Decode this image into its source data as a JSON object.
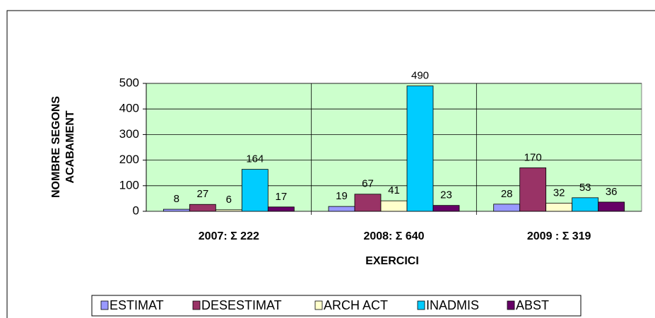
{
  "chart_data": {
    "type": "bar",
    "categories": [
      "2007: Σ 222",
      "2008: Σ 640",
      "2009 : Σ 319"
    ],
    "series": [
      {
        "name": "ESTIMAT",
        "color": "#9999ff",
        "values": [
          8,
          19,
          28
        ]
      },
      {
        "name": "DESESTIMAT",
        "color": "#993366",
        "values": [
          27,
          67,
          170
        ]
      },
      {
        "name": "ARCH ACT",
        "color": "#ffffcc",
        "values": [
          6,
          41,
          32
        ]
      },
      {
        "name": "INADMIS",
        "color": "#00ccff",
        "values": [
          164,
          490,
          53
        ]
      },
      {
        "name": "ABST",
        "color": "#660066",
        "values": [
          17,
          23,
          36
        ]
      }
    ],
    "x_label": "EXERCICI",
    "y_label": [
      "NOMBRE SEGONS",
      "ACABAMENT"
    ],
    "ylim": [
      0,
      500
    ],
    "yticks": [
      0,
      100,
      200,
      300,
      400,
      500
    ],
    "grid": true,
    "plot_background": "#ccffcc",
    "legend": "bottom"
  }
}
